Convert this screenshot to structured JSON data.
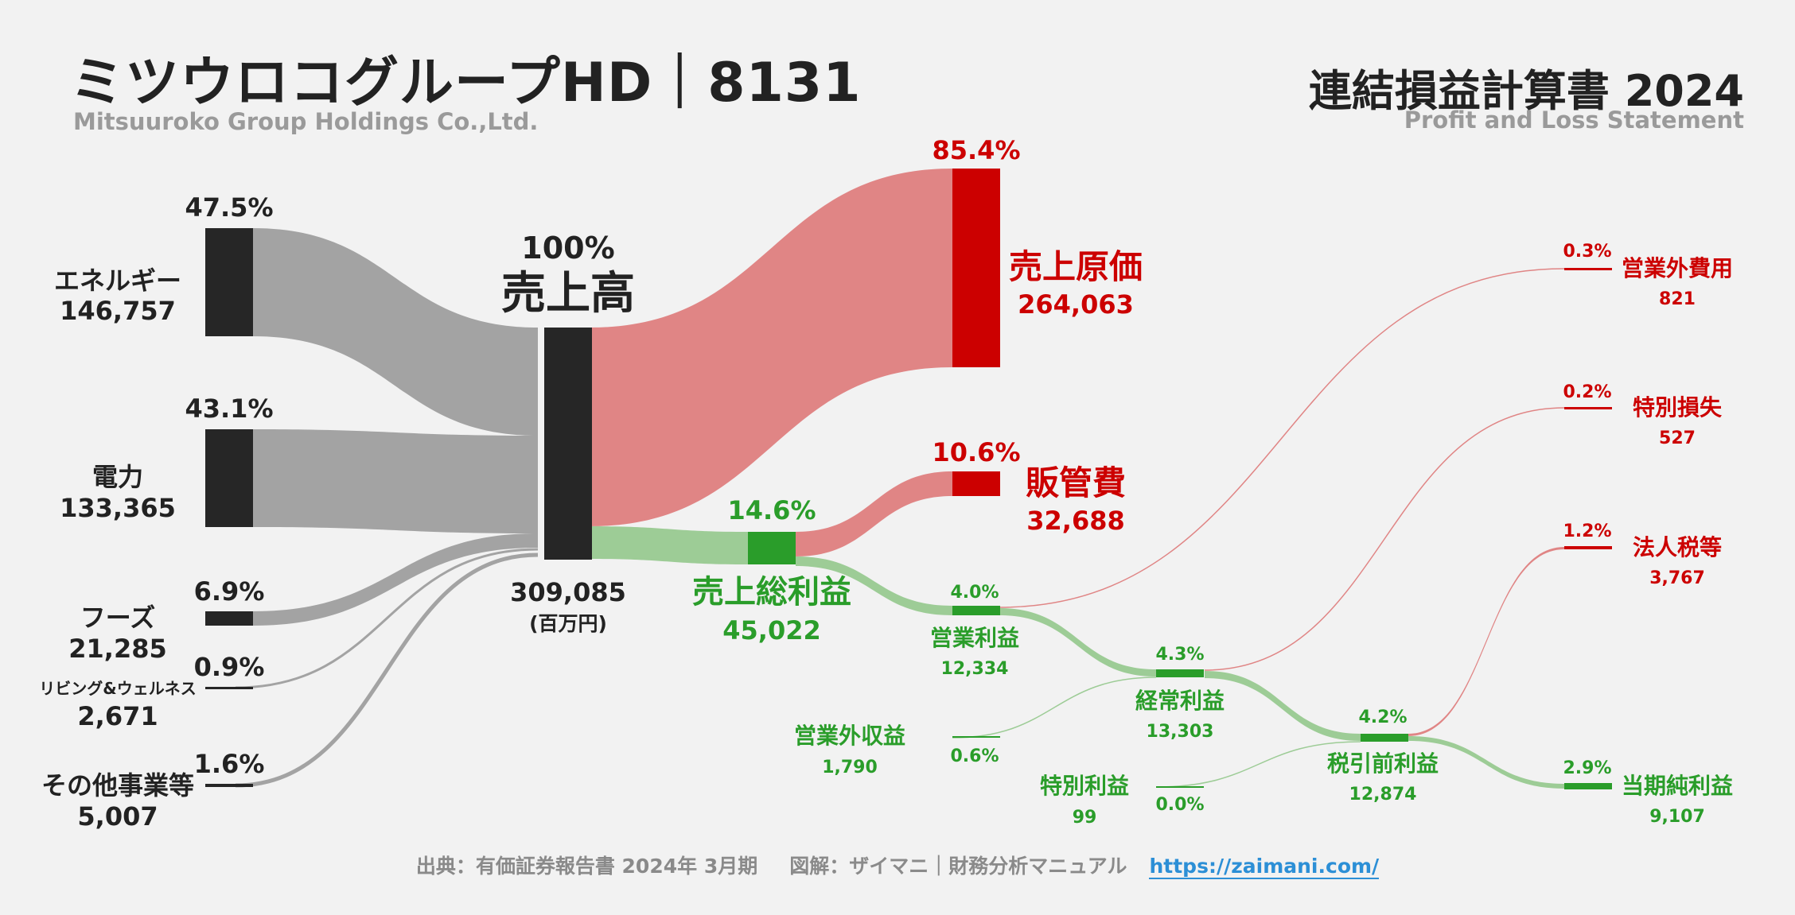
{
  "header": {
    "title": "ミツウロコグループHD｜8131",
    "subtitle": "Mitsuuroko Group Holdings Co.,Ltd.",
    "doc_title": "連結損益計算書 2024",
    "doc_subtitle": "Profit and Loss Statement"
  },
  "footer": {
    "source": "出典：有価証券報告書 2024年 3月期",
    "credit": "図解：ザイマニ｜財務分析マニュアル",
    "url": "https://zaimani.com/"
  },
  "colors": {
    "bar_dark": "#262626",
    "flow_gray": "#a3a3a3",
    "flow_red": "#e08585",
    "flow_green": "#9dcc96",
    "red": "#cc0000",
    "green": "#2a9d2a",
    "text_dark": "#222222"
  },
  "chart_data": {
    "type": "sankey",
    "unit": "(百万円)",
    "segments": [
      {
        "name": "エネルギー",
        "value": "146,757",
        "pct": "47.5%"
      },
      {
        "name": "電力",
        "value": "133,365",
        "pct": "43.1%"
      },
      {
        "name": "フーズ",
        "value": "21,285",
        "pct": "6.9%"
      },
      {
        "name": "リビング&ウェルネス",
        "value": "2,671",
        "pct": "0.9%"
      },
      {
        "name": "その他事業等",
        "value": "5,007",
        "pct": "1.6%"
      }
    ],
    "revenue": {
      "name": "売上高",
      "value": "309,085",
      "pct": "100%"
    },
    "cost_of_sales": {
      "name": "売上原価",
      "value": "264,063",
      "pct": "85.4%"
    },
    "gross_profit": {
      "name": "売上総利益",
      "value": "45,022",
      "pct": "14.6%"
    },
    "sga": {
      "name": "販管費",
      "value": "32,688",
      "pct": "10.6%"
    },
    "operating_income": {
      "name": "営業利益",
      "value": "12,334",
      "pct": "4.0%"
    },
    "non_op_income": {
      "name": "営業外収益",
      "value": "1,790",
      "pct": "0.6%"
    },
    "non_op_expense": {
      "name": "営業外費用",
      "value": "821",
      "pct": "0.3%"
    },
    "ordinary_income": {
      "name": "経常利益",
      "value": "13,303",
      "pct": "4.3%"
    },
    "extraordinary_gain": {
      "name": "特別利益",
      "value": "99",
      "pct": "0.0%"
    },
    "extraordinary_loss": {
      "name": "特別損失",
      "value": "527",
      "pct": "0.2%"
    },
    "pretax_income": {
      "name": "税引前利益",
      "value": "12,874",
      "pct": "4.2%"
    },
    "income_tax": {
      "name": "法人税等",
      "value": "3,767",
      "pct": "1.2%"
    },
    "net_income": {
      "name": "当期純利益",
      "value": "9,107",
      "pct": "2.9%"
    }
  }
}
